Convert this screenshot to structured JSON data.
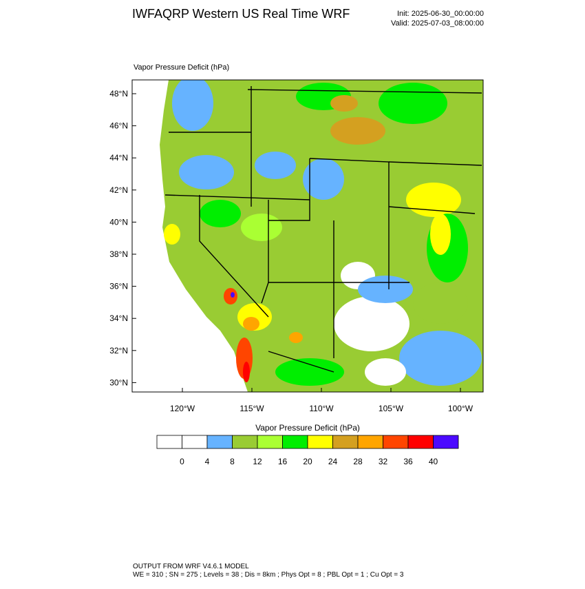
{
  "header": {
    "title": "IWFAQRP Western US Real Time WRF",
    "init": "Init: 2025-06-30_00:00:00",
    "valid": "Valid: 2025-07-03_08:00:00"
  },
  "plot": {
    "label": "Vapor Pressure Deficit   (hPa)",
    "lat_ticks": [
      "48°N",
      "46°N",
      "44°N",
      "42°N",
      "40°N",
      "38°N",
      "36°N",
      "34°N",
      "32°N",
      "30°N"
    ],
    "lon_ticks": [
      "120°W",
      "115°W",
      "110°W",
      "105°W",
      "100°W"
    ]
  },
  "colorbar": {
    "title": "Vapor Pressure Deficit  (hPa)",
    "colors": [
      "#ffffff",
      "#ffffff",
      "#66b3ff",
      "#99cc33",
      "#aaff33",
      "#00ee00",
      "#ffff00",
      "#d4a020",
      "#ffa500",
      "#ff4500",
      "#ff0000",
      "#4b0aff"
    ],
    "labels": [
      0,
      4,
      8,
      12,
      16,
      20,
      24,
      28,
      32,
      36,
      40
    ]
  },
  "footer": {
    "line1": "OUTPUT FROM WRF V4.6.1 MODEL",
    "line2": "WE = 310 ; SN = 275 ; Levels = 38 ; Dis = 8km ; Phys Opt = 8 ; PBL Opt = 1 ; Cu Opt = 3"
  }
}
